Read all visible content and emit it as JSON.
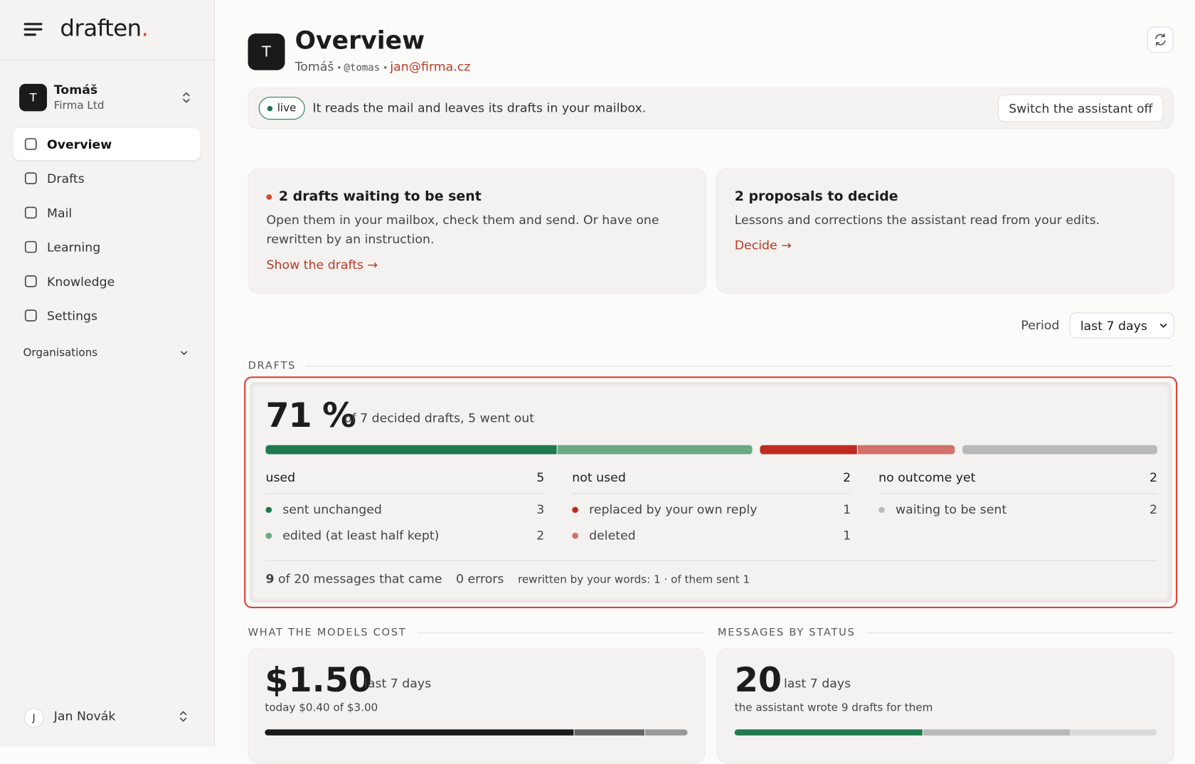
{
  "sidebar": {
    "brand": "draften",
    "brand_dot": ".",
    "account": {
      "initial": "T",
      "name": "Tomáš",
      "org": "Firma Ltd"
    },
    "nav": [
      "Overview",
      "Drafts",
      "Mail",
      "Learning",
      "Knowledge",
      "Settings"
    ],
    "organisations": "Organisations",
    "user": {
      "initial": "J",
      "name": "Jan Novák"
    }
  },
  "header": {
    "avatar": "T",
    "title": "Overview",
    "name": "Tomáš",
    "handle": "@tomas",
    "email": "jan@firma.cz"
  },
  "status": {
    "badge": "live",
    "text": "It reads the mail and leaves its drafts in your mailbox.",
    "button": "Switch the assistant off"
  },
  "cards": [
    {
      "title": "2 drafts waiting to be sent",
      "text": "Open them in your mailbox, check them and send. Or have one rewritten by an instruction.",
      "link": "Show the drafts →"
    },
    {
      "title": "2 proposals to decide",
      "text": "Lessons and corrections the assistant read from your edits.",
      "link": "Decide →"
    }
  ],
  "period": {
    "label": "Period",
    "value": "last 7 days"
  },
  "drafts": {
    "section": "DRAFTS",
    "rate": "71 %",
    "summary": "of 7 decided drafts, 5 went out",
    "groups": [
      {
        "name": "used",
        "total": 5,
        "items": [
          {
            "label": "sent unchanged",
            "count": 3,
            "color": "#1f7a4e"
          },
          {
            "label": "edited (at least half kept)",
            "count": 2,
            "color": "#6aa983"
          }
        ]
      },
      {
        "name": "not used",
        "total": 2,
        "items": [
          {
            "label": "replaced by your own reply",
            "count": 1,
            "color": "#bf2a22"
          },
          {
            "label": "deleted",
            "count": 1,
            "color": "#d2706a"
          }
        ]
      },
      {
        "name": "no outcome yet",
        "total": 2,
        "items": [
          {
            "label": "waiting to be sent",
            "count": 2,
            "color": "#b9b9bb"
          }
        ]
      }
    ],
    "footer": {
      "count": 9,
      "of": "of 20 messages that came",
      "errors": "0 errors",
      "rewritten": "rewritten by your words: 1 · of them sent 1"
    }
  },
  "cost": {
    "section": "WHAT THE MODELS COST",
    "amount": "$1.50",
    "period": "last 7 days",
    "note": "today $0.40 of $3.00"
  },
  "messages": {
    "section": "MESSAGES BY STATUS",
    "amount": 20,
    "period": "last 7 days",
    "note": "the assistant wrote 9 drafts for them"
  }
}
